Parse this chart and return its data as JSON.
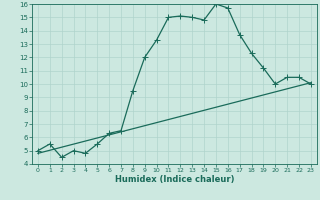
{
  "xlabel": "Humidex (Indice chaleur)",
  "ylabel": "",
  "bg_color": "#cce8e0",
  "line_color": "#1a6b5a",
  "grid_color": "#b0d4cc",
  "xlim": [
    -0.5,
    23.5
  ],
  "ylim": [
    4,
    16
  ],
  "xticks": [
    0,
    1,
    2,
    3,
    4,
    5,
    6,
    7,
    8,
    9,
    10,
    11,
    12,
    13,
    14,
    15,
    16,
    17,
    18,
    19,
    20,
    21,
    22,
    23
  ],
  "yticks": [
    4,
    5,
    6,
    7,
    8,
    9,
    10,
    11,
    12,
    13,
    14,
    15,
    16
  ],
  "curve1_x": [
    0,
    1,
    2,
    3,
    4,
    5,
    6,
    7,
    8,
    9,
    10,
    11,
    12,
    13,
    14,
    15,
    16,
    17,
    18,
    19,
    20,
    21,
    22,
    23
  ],
  "curve1_y": [
    5.0,
    5.5,
    4.5,
    5.0,
    4.8,
    5.5,
    6.3,
    6.5,
    9.5,
    12.0,
    13.3,
    15.0,
    15.1,
    15.0,
    14.8,
    16.0,
    15.7,
    13.7,
    12.3,
    11.2,
    10.0,
    10.5,
    10.5,
    10.0
  ],
  "curve2_x": [
    0,
    23
  ],
  "curve2_y": [
    4.8,
    10.1
  ],
  "marker": "+",
  "markersize": 4,
  "linewidth": 0.9
}
